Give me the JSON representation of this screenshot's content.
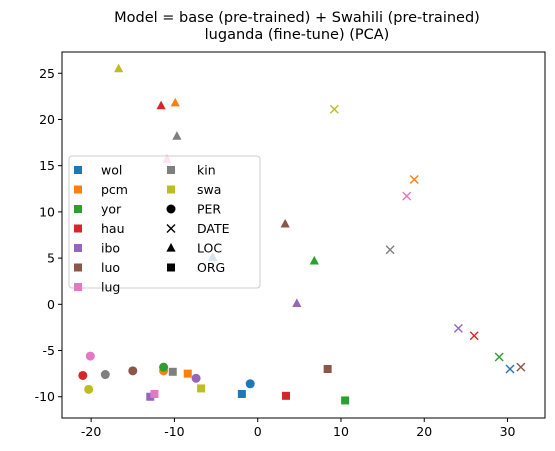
{
  "chart_data": {
    "type": "scatter",
    "title": "Model = base (pre-trained) + Swahili (pre-trained)",
    "subtitle": "luganda (fine-tune) (PCA)",
    "xlabel": "",
    "ylabel": "",
    "xlim": [
      -23.5,
      34.5
    ],
    "ylim": [
      -12.3,
      27.3
    ],
    "xticks": [
      -20,
      -10,
      0,
      10,
      20,
      30
    ],
    "yticks": [
      -10,
      -5,
      0,
      5,
      10,
      15,
      20,
      25
    ],
    "grid": false,
    "legend_position": "center-left",
    "languages": [
      {
        "name": "wol",
        "color": "#1f77b4"
      },
      {
        "name": "pcm",
        "color": "#ff7f0e"
      },
      {
        "name": "yor",
        "color": "#2ca02c"
      },
      {
        "name": "hau",
        "color": "#d62728"
      },
      {
        "name": "ibo",
        "color": "#9467bd"
      },
      {
        "name": "luo",
        "color": "#8c564b"
      },
      {
        "name": "lug",
        "color": "#e377c2"
      },
      {
        "name": "kin",
        "color": "#7f7f7f"
      },
      {
        "name": "swa",
        "color": "#bcbd22"
      }
    ],
    "entity_types": [
      {
        "name": "PER",
        "marker": "circle"
      },
      {
        "name": "DATE",
        "marker": "x"
      },
      {
        "name": "LOC",
        "marker": "triangle"
      },
      {
        "name": "ORG",
        "marker": "square"
      }
    ],
    "points": [
      {
        "lang": "wol",
        "entity": "PER",
        "x": -0.9,
        "y": -8.6
      },
      {
        "lang": "wol",
        "entity": "DATE",
        "x": 30.3,
        "y": -7.0
      },
      {
        "lang": "wol",
        "entity": "LOC",
        "x": -5.4,
        "y": 5.1
      },
      {
        "lang": "wol",
        "entity": "ORG",
        "x": -1.9,
        "y": -9.7
      },
      {
        "lang": "pcm",
        "entity": "PER",
        "x": -11.3,
        "y": -7.2
      },
      {
        "lang": "pcm",
        "entity": "DATE",
        "x": 18.8,
        "y": 13.5
      },
      {
        "lang": "pcm",
        "entity": "LOC",
        "x": -9.9,
        "y": 21.8
      },
      {
        "lang": "pcm",
        "entity": "ORG",
        "x": -8.4,
        "y": -7.5
      },
      {
        "lang": "yor",
        "entity": "PER",
        "x": -11.3,
        "y": -6.8
      },
      {
        "lang": "yor",
        "entity": "DATE",
        "x": 29.0,
        "y": -5.7
      },
      {
        "lang": "yor",
        "entity": "LOC",
        "x": 6.8,
        "y": 4.7
      },
      {
        "lang": "yor",
        "entity": "ORG",
        "x": 10.5,
        "y": -10.4
      },
      {
        "lang": "hau",
        "entity": "PER",
        "x": -21.0,
        "y": -7.7
      },
      {
        "lang": "hau",
        "entity": "DATE",
        "x": 26.0,
        "y": -3.4
      },
      {
        "lang": "hau",
        "entity": "LOC",
        "x": -11.6,
        "y": 21.5
      },
      {
        "lang": "hau",
        "entity": "ORG",
        "x": 3.4,
        "y": -9.9
      },
      {
        "lang": "ibo",
        "entity": "PER",
        "x": -7.4,
        "y": -8.0
      },
      {
        "lang": "ibo",
        "entity": "DATE",
        "x": 24.1,
        "y": -2.6
      },
      {
        "lang": "ibo",
        "entity": "LOC",
        "x": 4.7,
        "y": 0.1
      },
      {
        "lang": "ibo",
        "entity": "ORG",
        "x": -12.9,
        "y": -10.0
      },
      {
        "lang": "luo",
        "entity": "PER",
        "x": -15.0,
        "y": -7.2
      },
      {
        "lang": "luo",
        "entity": "DATE",
        "x": 31.6,
        "y": -6.8
      },
      {
        "lang": "luo",
        "entity": "LOC",
        "x": 3.3,
        "y": 8.7
      },
      {
        "lang": "luo",
        "entity": "ORG",
        "x": 8.4,
        "y": -7.0
      },
      {
        "lang": "lug",
        "entity": "PER",
        "x": -20.1,
        "y": -5.6
      },
      {
        "lang": "lug",
        "entity": "DATE",
        "x": 17.9,
        "y": 11.7
      },
      {
        "lang": "lug",
        "entity": "LOC",
        "x": -10.9,
        "y": 15.7
      },
      {
        "lang": "lug",
        "entity": "ORG",
        "x": -12.4,
        "y": -9.7
      },
      {
        "lang": "kin",
        "entity": "PER",
        "x": -18.3,
        "y": -7.6
      },
      {
        "lang": "kin",
        "entity": "DATE",
        "x": 15.9,
        "y": 5.9
      },
      {
        "lang": "kin",
        "entity": "LOC",
        "x": -9.7,
        "y": 18.2
      },
      {
        "lang": "kin",
        "entity": "ORG",
        "x": -10.2,
        "y": -7.3
      },
      {
        "lang": "swa",
        "entity": "PER",
        "x": -20.3,
        "y": -9.2
      },
      {
        "lang": "swa",
        "entity": "DATE",
        "x": 9.2,
        "y": 21.1
      },
      {
        "lang": "swa",
        "entity": "LOC",
        "x": -16.7,
        "y": 25.5
      },
      {
        "lang": "swa",
        "entity": "ORG",
        "x": -6.8,
        "y": -9.1
      }
    ]
  }
}
